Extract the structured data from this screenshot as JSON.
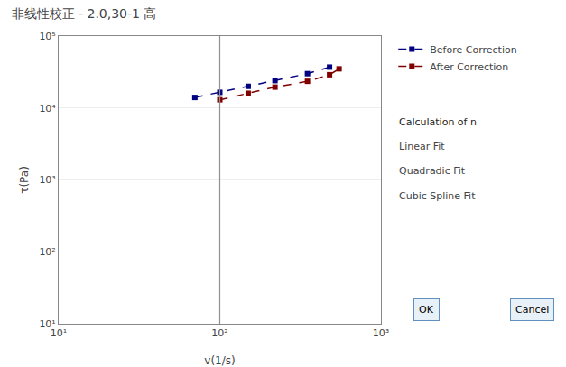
{
  "chart_data": {
    "type": "line",
    "title": "非线性校正 - 2.0,30-1 高",
    "xlabel": "v(1/s)",
    "ylabel": "τ(Pa)",
    "log": true,
    "xlim": [
      10,
      1000
    ],
    "ylim": [
      10,
      100000
    ],
    "xticks": [
      {
        "value": 10,
        "label": "10¹"
      },
      {
        "value": 100,
        "label": "10²"
      },
      {
        "value": 1000,
        "label": "10³"
      }
    ],
    "yticks": [
      {
        "value": 10,
        "label": "10¹"
      },
      {
        "value": 100,
        "label": "10²"
      },
      {
        "value": 1000,
        "label": "10³"
      },
      {
        "value": 10000,
        "label": "10⁴"
      },
      {
        "value": 100000,
        "label": "10⁵"
      }
    ],
    "grid": true,
    "legend": "right",
    "series": [
      {
        "name": "Before Correction",
        "color": "#000080",
        "marker": "square",
        "line_style": "dashed",
        "x": [
          70,
          100,
          150,
          220,
          350,
          480
        ],
        "values": [
          14000,
          16500,
          20000,
          24000,
          30000,
          37000
        ]
      },
      {
        "name": "After Correction",
        "color": "#800000",
        "marker": "square",
        "line_style": "dashed",
        "x": [
          100,
          150,
          220,
          350,
          480,
          550
        ],
        "values": [
          13000,
          16000,
          19500,
          23500,
          29000,
          35000
        ]
      }
    ],
    "annotations": [
      {
        "type": "vline",
        "x": 100
      },
      {
        "text": "Calculation of n"
      },
      {
        "text": "Linear Fit"
      },
      {
        "text": "Quadradic Fit"
      },
      {
        "text": "Cubic Spline Fit"
      },
      {
        "text": "OK"
      },
      {
        "text": "Cancel"
      }
    ]
  }
}
